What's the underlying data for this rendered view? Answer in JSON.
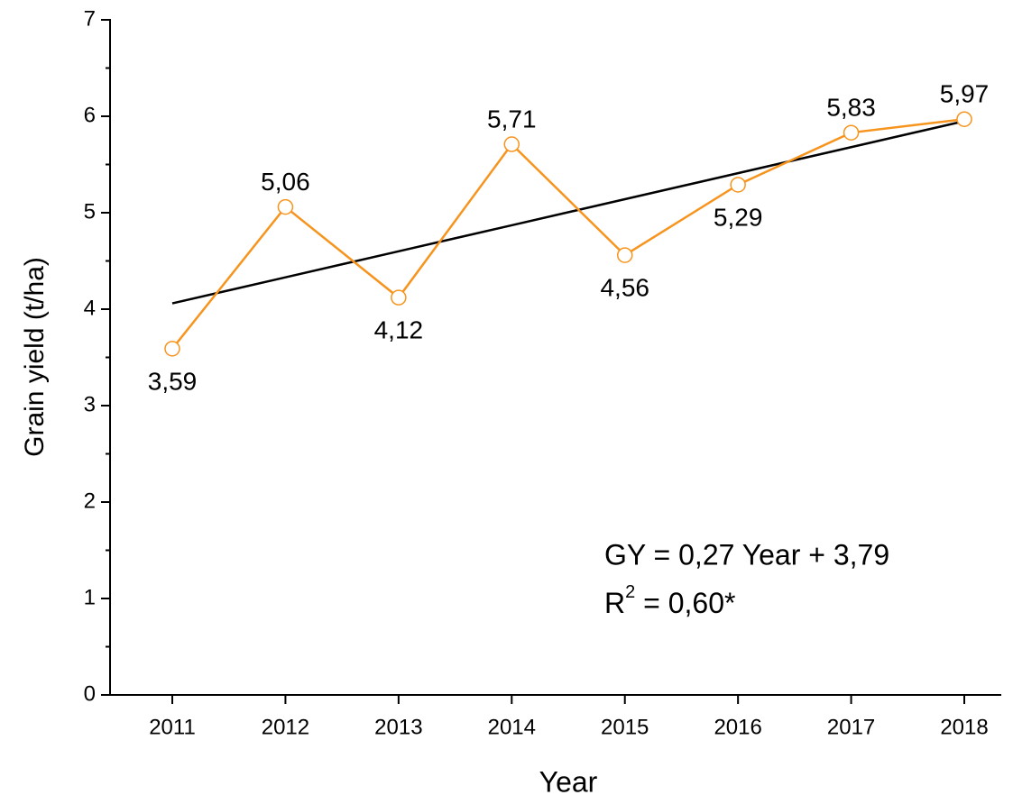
{
  "chart_data": {
    "type": "line",
    "x_label": "Year",
    "y_label": "Grain yield (t/ha)",
    "categories": [
      "2011",
      "2012",
      "2013",
      "2014",
      "2015",
      "2016",
      "2017",
      "2018"
    ],
    "series": [
      {
        "color": "#f7941d",
        "values": [
          3.59,
          5.06,
          4.12,
          5.71,
          4.56,
          5.29,
          5.83,
          5.97
        ],
        "value_labels": [
          "3,59",
          "5,06",
          "4,12",
          "5,71",
          "4,56",
          "5,29",
          "5,83",
          "5,97"
        ],
        "markers": true
      },
      {
        "color": "#000000",
        "values": [
          4.06,
          4.33,
          4.6,
          4.87,
          5.14,
          5.41,
          5.68,
          5.95
        ],
        "markers": false
      }
    ],
    "ylim": [
      0,
      7
    ],
    "yticks": [
      0,
      1,
      2,
      3,
      4,
      5,
      6,
      7
    ],
    "equation": "GY = 0,27 Year + 3,79",
    "r2": {
      "base": "R",
      "sup": "2",
      "rest": " = 0,60*"
    }
  }
}
